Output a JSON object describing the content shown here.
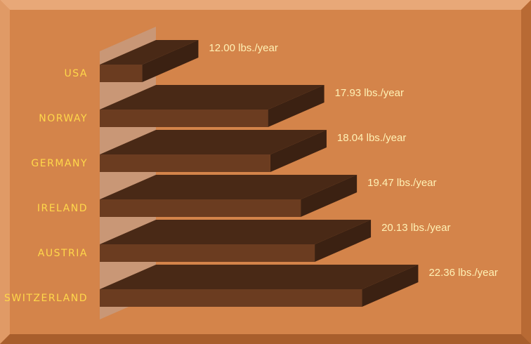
{
  "chart_data": {
    "type": "bar",
    "categories": [
      "USA",
      "NORWAY",
      "GERMANY",
      "IRELAND",
      "AUSTRIA",
      "SWITZERLAND"
    ],
    "values": [
      12.0,
      17.93,
      18.04,
      19.47,
      20.13,
      22.36
    ],
    "value_labels": [
      "12.00 lbs./year",
      "17.93 lbs./year",
      "18.04 lbs./year",
      "19.47 lbs./year",
      "20.13 lbs./year",
      "22.36 lbs./year"
    ],
    "color": "#6b3c20",
    "xlim": [
      10,
      24
    ]
  }
}
